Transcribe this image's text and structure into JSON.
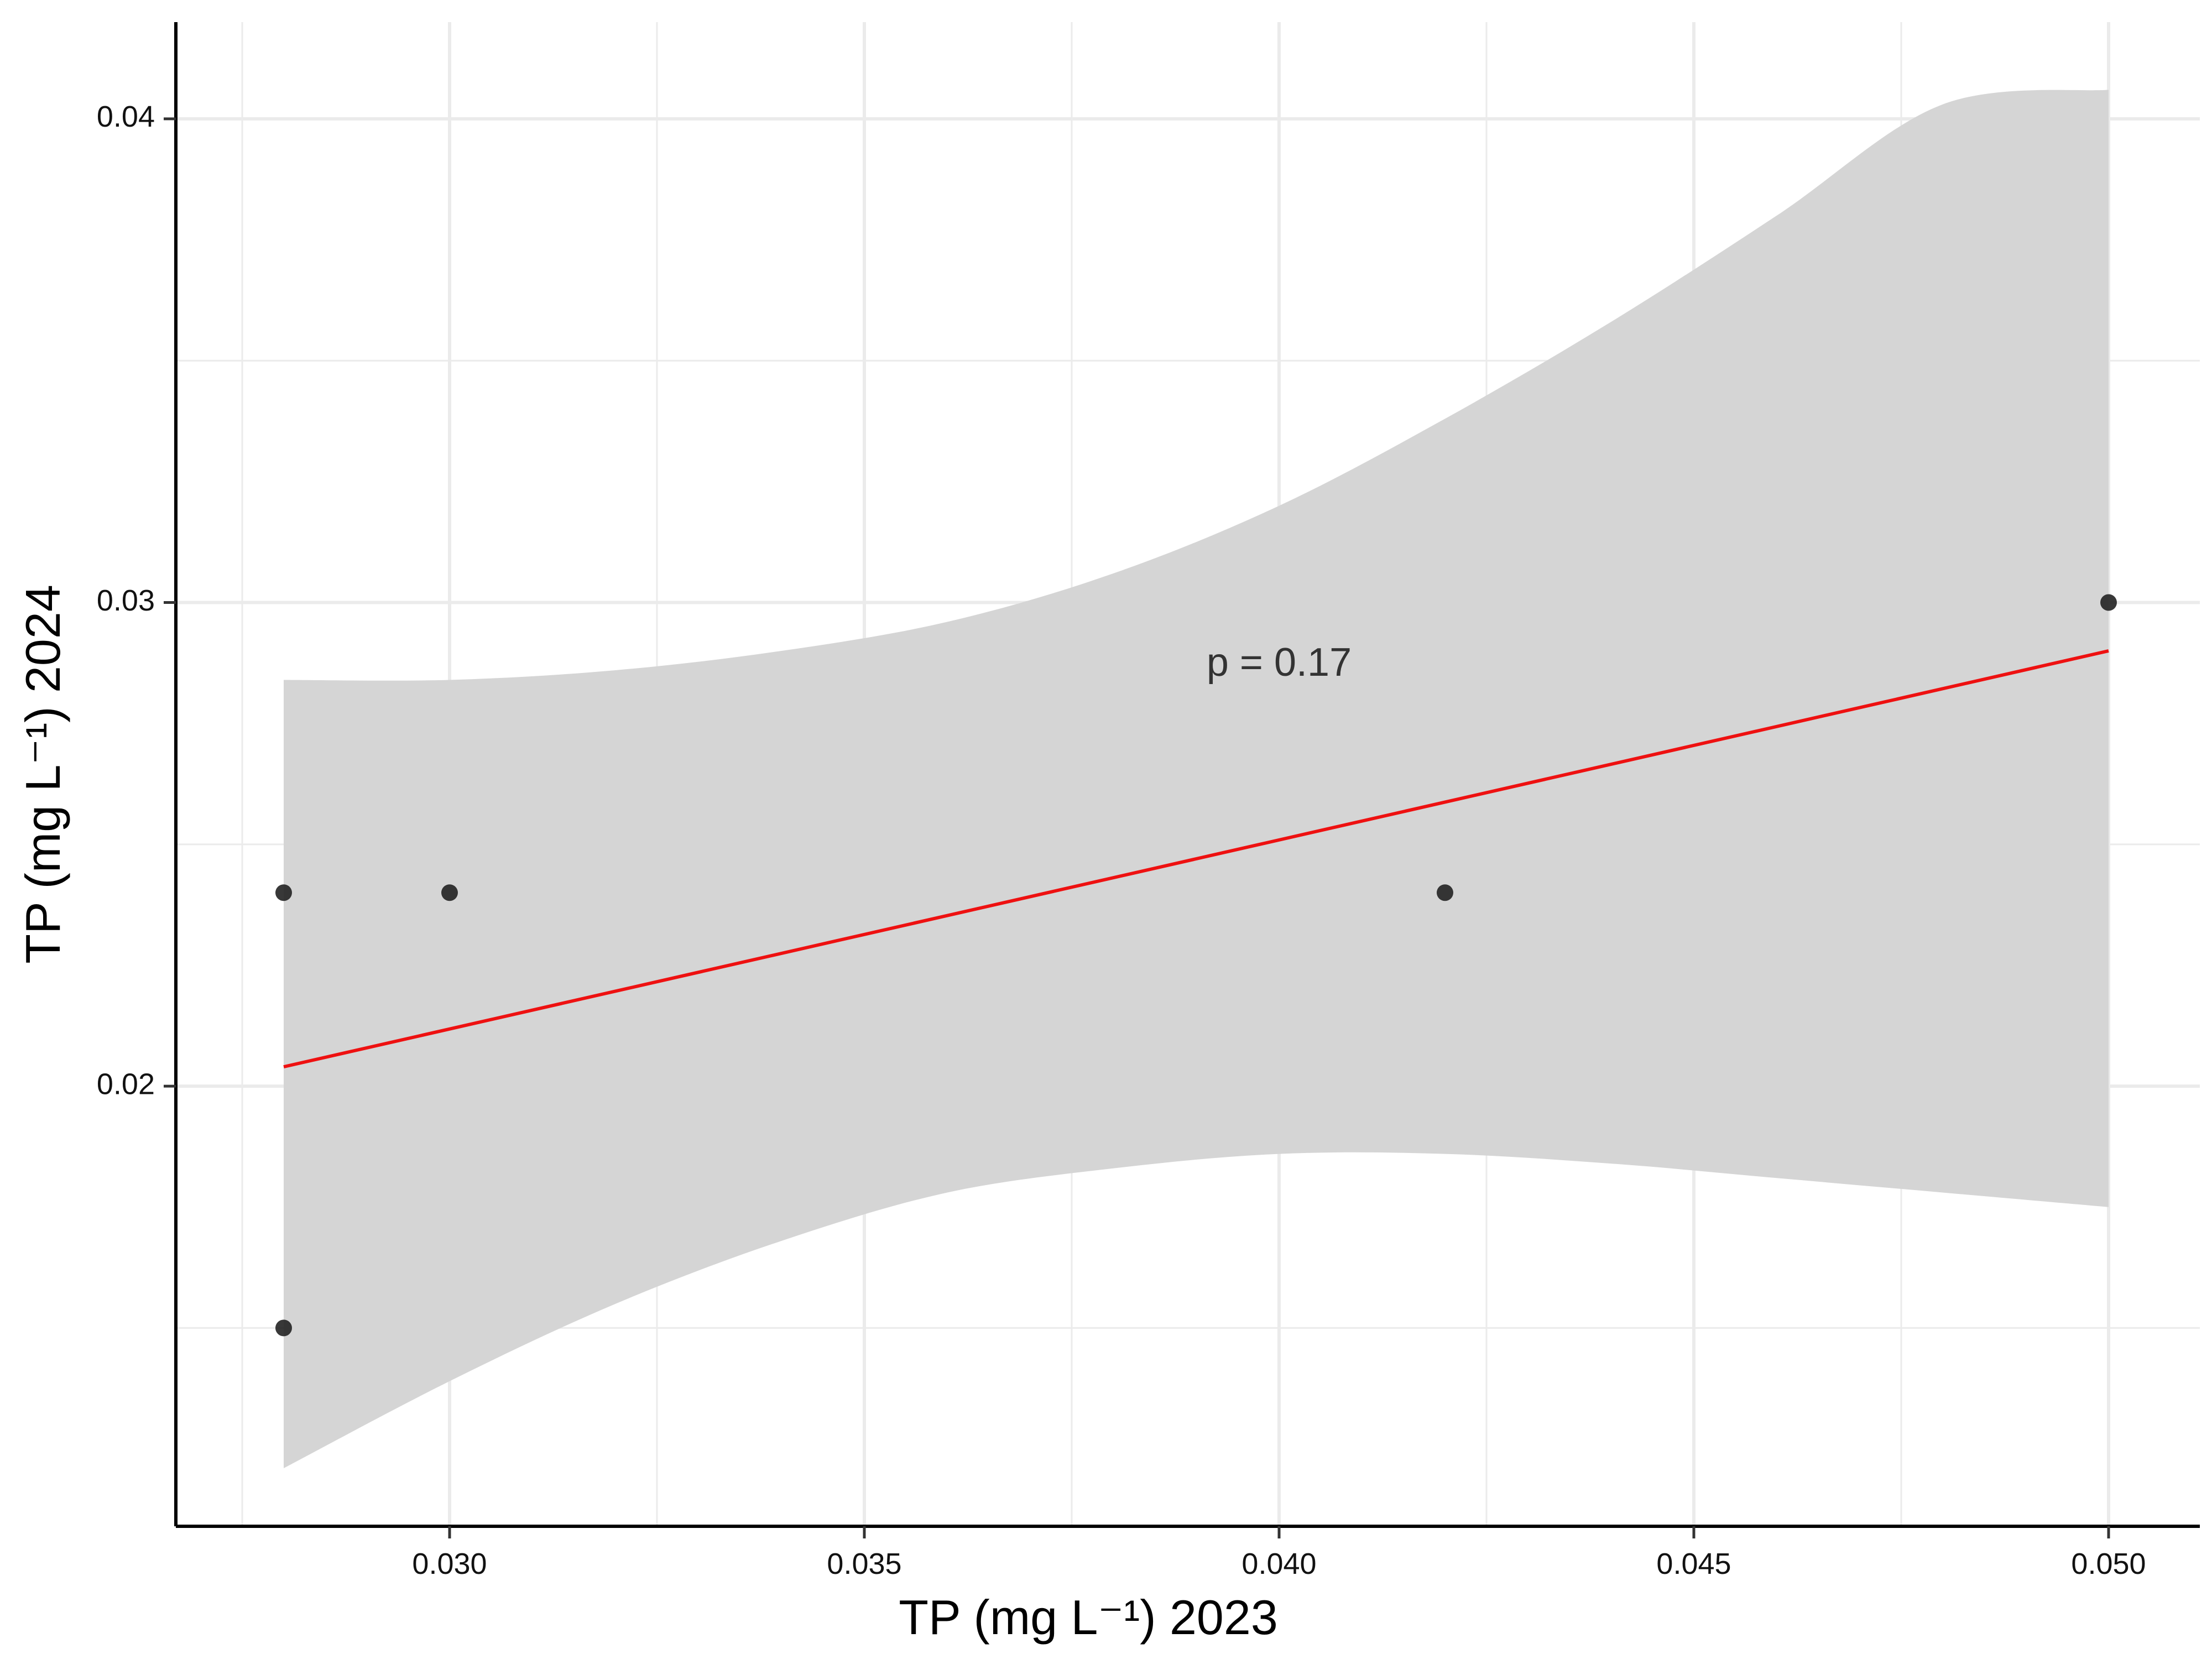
{
  "chart_data": {
    "type": "scatter",
    "xlabel": "TP (mg L⁻¹) 2023",
    "ylabel": "TP (mg L⁻¹) 2024",
    "xlim": [
      0.0267,
      0.0511
    ],
    "ylim": [
      0.0109,
      0.042
    ],
    "x_ticks": [
      0.03,
      0.035,
      0.04,
      0.045,
      0.05
    ],
    "x_tick_labels": [
      "0.030",
      "0.035",
      "0.040",
      "0.045",
      "0.050"
    ],
    "x_minor_ticks": [
      0.0275,
      0.0325,
      0.0375,
      0.0425,
      0.0475
    ],
    "y_ticks": [
      0.02,
      0.03,
      0.04
    ],
    "y_tick_labels": [
      "0.02",
      "0.03",
      "0.04"
    ],
    "y_minor_ticks": [
      0.015,
      0.025,
      0.035
    ],
    "points": [
      {
        "x": 0.028,
        "y": 0.024
      },
      {
        "x": 0.028,
        "y": 0.015
      },
      {
        "x": 0.03,
        "y": 0.024
      },
      {
        "x": 0.042,
        "y": 0.024
      },
      {
        "x": 0.05,
        "y": 0.03
      }
    ],
    "fit_line": {
      "x": [
        0.028,
        0.05
      ],
      "y": [
        0.0204,
        0.029
      ]
    },
    "confidence_band": {
      "x": [
        0.028,
        0.03,
        0.032,
        0.034,
        0.036,
        0.038,
        0.04,
        0.042,
        0.044,
        0.046,
        0.048,
        0.05
      ],
      "upper": [
        0.0284,
        0.0284,
        0.0286,
        0.029,
        0.0296,
        0.0306,
        0.032,
        0.0338,
        0.0358,
        0.038,
        0.0403,
        0.0406
      ],
      "lower": [
        0.0121,
        0.0139,
        0.0155,
        0.0168,
        0.0178,
        0.0183,
        0.0186,
        0.0186,
        0.0184,
        0.0181,
        0.0178,
        0.0175
      ]
    },
    "annotation": {
      "text": "p = 0.17",
      "x": 0.04,
      "y": 0.0287
    },
    "grid": true,
    "legend": "none",
    "colors": {
      "points": "#222222",
      "fit_line": "#ee1111",
      "band": "#d5d5d5",
      "grid": "#ebebeb",
      "axis": "#000000"
    }
  }
}
